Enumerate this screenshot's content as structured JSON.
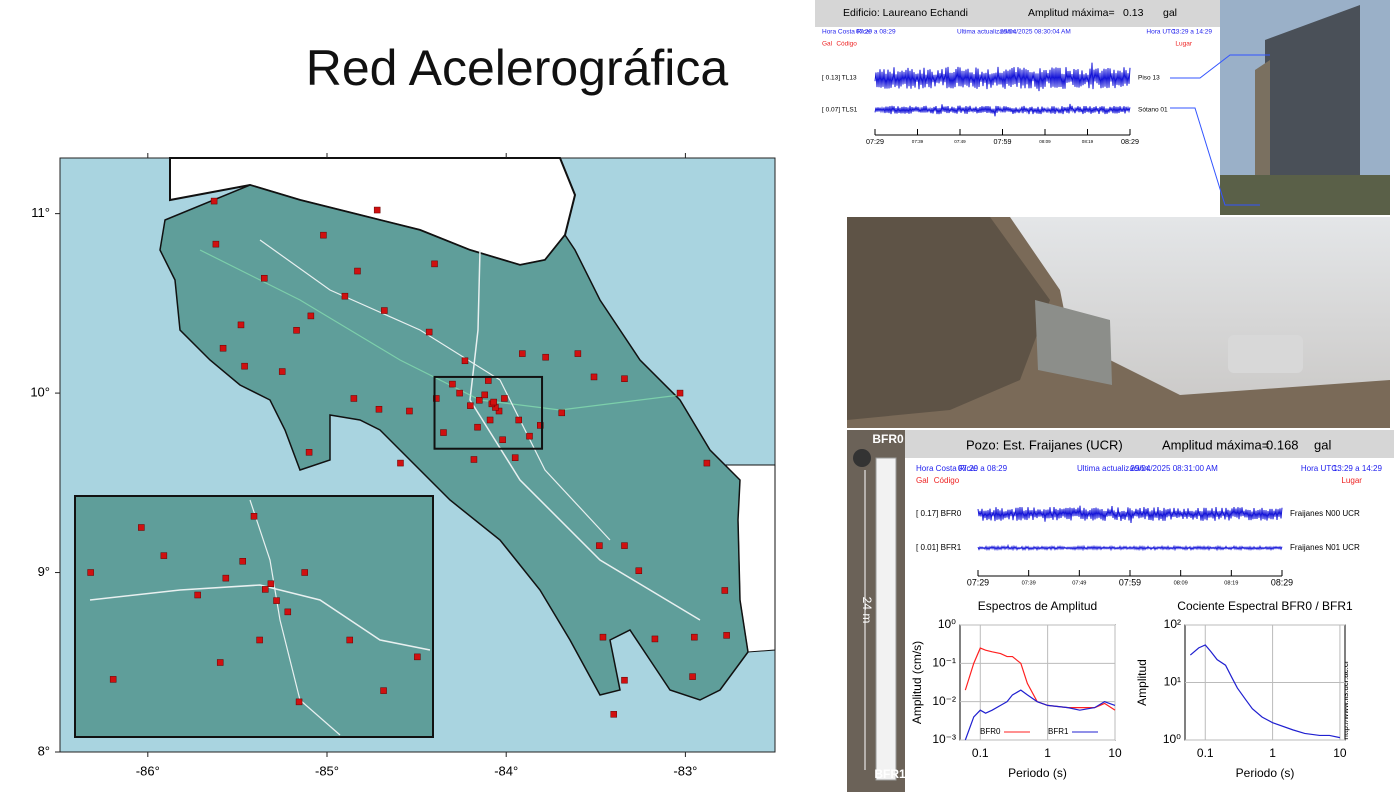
{
  "title": "Red Acelerográfica",
  "map": {
    "xlim": [
      -86.49,
      -82.5
    ],
    "ylim": [
      8.0,
      11.31
    ],
    "xticks": [
      {
        "value": -86,
        "label": "-86°"
      },
      {
        "value": -85,
        "label": "-85°"
      },
      {
        "value": -84,
        "label": "-84°"
      },
      {
        "value": -83,
        "label": "-83°"
      }
    ],
    "yticks": [
      {
        "value": 8,
        "label": "8°"
      },
      {
        "value": 9,
        "label": "9°"
      },
      {
        "value": 10,
        "label": "10°"
      },
      {
        "value": 11,
        "label": "11°"
      }
    ],
    "inset_box": {
      "lon": [
        -84.4,
        -83.8
      ],
      "lat": [
        9.69,
        10.09
      ]
    },
    "stations": [
      [
        -85.63,
        11.07
      ],
      [
        -85.02,
        10.88
      ],
      [
        -84.72,
        11.02
      ],
      [
        -85.62,
        10.83
      ],
      [
        -84.4,
        10.72
      ],
      [
        -84.83,
        10.68
      ],
      [
        -85.35,
        10.64
      ],
      [
        -84.9,
        10.54
      ],
      [
        -85.48,
        10.38
      ],
      [
        -85.17,
        10.35
      ],
      [
        -85.09,
        10.43
      ],
      [
        -84.68,
        10.46
      ],
      [
        -84.43,
        10.34
      ],
      [
        -85.58,
        10.25
      ],
      [
        -85.46,
        10.15
      ],
      [
        -85.25,
        10.12
      ],
      [
        -84.85,
        9.97
      ],
      [
        -84.71,
        9.91
      ],
      [
        -84.54,
        9.9
      ],
      [
        -84.39,
        9.97
      ],
      [
        -84.26,
        10.0
      ],
      [
        -84.15,
        9.96
      ],
      [
        -84.04,
        9.9
      ],
      [
        -83.93,
        9.85
      ],
      [
        -83.81,
        9.82
      ],
      [
        -83.69,
        9.89
      ],
      [
        -83.51,
        10.09
      ],
      [
        -83.34,
        10.08
      ],
      [
        -83.03,
        10.0
      ],
      [
        -82.88,
        9.61
      ],
      [
        -83.91,
        10.22
      ],
      [
        -83.78,
        10.2
      ],
      [
        -83.6,
        10.22
      ],
      [
        -84.23,
        10.18
      ],
      [
        -85.1,
        9.67
      ],
      [
        -84.59,
        9.61
      ],
      [
        -84.18,
        9.63
      ],
      [
        -83.95,
        9.64
      ],
      [
        -83.48,
        9.15
      ],
      [
        -83.34,
        9.15
      ],
      [
        -83.26,
        9.01
      ],
      [
        -82.78,
        8.9
      ],
      [
        -83.46,
        8.64
      ],
      [
        -83.17,
        8.63
      ],
      [
        -82.95,
        8.64
      ],
      [
        -82.77,
        8.65
      ],
      [
        -82.96,
        8.42
      ],
      [
        -83.34,
        8.4
      ],
      [
        -83.4,
        8.21
      ],
      [
        -84.2,
        9.93
      ],
      [
        -84.12,
        9.99
      ],
      [
        -84.06,
        9.92
      ],
      [
        -84.01,
        9.97
      ],
      [
        -84.09,
        9.85
      ],
      [
        -84.3,
        10.05
      ],
      [
        -84.35,
        9.78
      ],
      [
        -84.1,
        10.07
      ],
      [
        -83.87,
        9.76
      ],
      [
        -84.02,
        9.74
      ],
      [
        -84.16,
        9.81
      ],
      [
        -84.08,
        9.94
      ],
      [
        -84.07,
        9.95
      ]
    ]
  },
  "building": {
    "header": "Edificio: Laureano Echandi",
    "amp_label": "Amplitud máxima=",
    "amp": 0.13,
    "unit": "gal",
    "cr_label": "Hora Costa Rica:",
    "cr_time": "07:29 a 08:29",
    "upd_label": "Ultima actualización:",
    "upd": "29/04/2025 08:30:04 AM",
    "utc_label": "Hora UTC:",
    "utc_time": "13:29 a 14:29",
    "gal": "Gal",
    "code": "Código",
    "place": "Lugar",
    "channels": [
      {
        "code": "[ 0.13] TL13",
        "place": "Piso 13"
      },
      {
        "code": "[ 0.07] TLS1",
        "place": "Sótano 01"
      }
    ],
    "times": [
      "07:29",
      "07:39",
      "07:49",
      "07:59",
      "08:09",
      "08:19",
      "08:29"
    ]
  },
  "borehole": {
    "header": "Pozo: Est. Fraijanes (UCR)",
    "amp_label": "Amplitud máxima=",
    "amp": 0.168,
    "unit": "gal",
    "cr_label": "Hora Costa Rica:",
    "cr_time": "07:29 a 08:29",
    "upd_label": "Ultima actualización:",
    "upd": "29/04/2025 08:31:00 AM",
    "utc_label": "Hora UTC:",
    "utc_time": "13:29 a 14:29",
    "gal": "Gal",
    "code": "Código",
    "place": "Lugar",
    "channels": [
      {
        "code": "[ 0.17] BFR0",
        "place": "Fraijanes N00 UCR"
      },
      {
        "code": "[ 0.01] BFR1",
        "place": "Fraijanes N01 UCR"
      }
    ],
    "times": [
      "07:29",
      "07:39",
      "07:49",
      "07:59",
      "08:09",
      "08:19",
      "08:29"
    ],
    "top": "BFR0",
    "bottom": "BFR1",
    "depth": "24 m",
    "url": "http://www.lis.ucr.ac.cr"
  },
  "spectra": [
    {
      "type": "line",
      "title": "Espectros de Amplitud",
      "xlabel": "Periodo (s)",
      "ylabel": "Amplitud (cm/s)",
      "log": true,
      "xlim": [
        0.05,
        10
      ],
      "ylim": [
        0.001,
        1
      ],
      "xticks": [
        0.1,
        1,
        10
      ],
      "yticks": [
        {
          "value": 0.001,
          "label": "10⁻³"
        },
        {
          "value": 0.01,
          "label": "10⁻²"
        },
        {
          "value": 0.1,
          "label": "10⁻¹"
        },
        {
          "value": 1,
          "label": "10⁰"
        }
      ],
      "x": [
        0.06,
        0.08,
        0.1,
        0.12,
        0.15,
        0.2,
        0.25,
        0.3,
        0.4,
        0.5,
        0.7,
        1,
        2,
        3,
        5,
        7,
        10
      ],
      "series": [
        {
          "name": "BFR0",
          "color": "#ff2020",
          "values": [
            0.02,
            0.1,
            0.25,
            0.22,
            0.2,
            0.18,
            0.15,
            0.15,
            0.1,
            0.03,
            0.01,
            0.008,
            0.007,
            0.007,
            0.007,
            0.009,
            0.006
          ]
        },
        {
          "name": "BFR1",
          "color": "#2020d0",
          "values": [
            0.001,
            0.004,
            0.006,
            0.005,
            0.006,
            0.008,
            0.01,
            0.015,
            0.02,
            0.015,
            0.01,
            0.008,
            0.007,
            0.006,
            0.007,
            0.01,
            0.008
          ]
        }
      ]
    },
    {
      "type": "line",
      "title": "Cociente Espectral BFR0 / BFR1",
      "xlabel": "Periodo (s)",
      "ylabel": "Amplitud",
      "log": true,
      "xlim": [
        0.05,
        11.9
      ],
      "ylim": [
        1,
        100
      ],
      "xticks": [
        0.1,
        1,
        10
      ],
      "yticks": [
        {
          "value": 1,
          "label": "10⁰"
        },
        {
          "value": 10,
          "label": "10¹"
        },
        {
          "value": 100,
          "label": "10²"
        }
      ],
      "x": [
        0.06,
        0.08,
        0.1,
        0.12,
        0.15,
        0.2,
        0.25,
        0.3,
        0.4,
        0.5,
        0.7,
        1,
        2,
        3,
        5,
        7,
        10
      ],
      "series": [
        {
          "color": "#2020d0",
          "values": [
            30,
            40,
            45,
            35,
            25,
            20,
            12,
            8,
            5,
            3.5,
            2.5,
            2,
            1.5,
            1.3,
            1.2,
            1.2,
            1.1
          ]
        }
      ]
    }
  ]
}
